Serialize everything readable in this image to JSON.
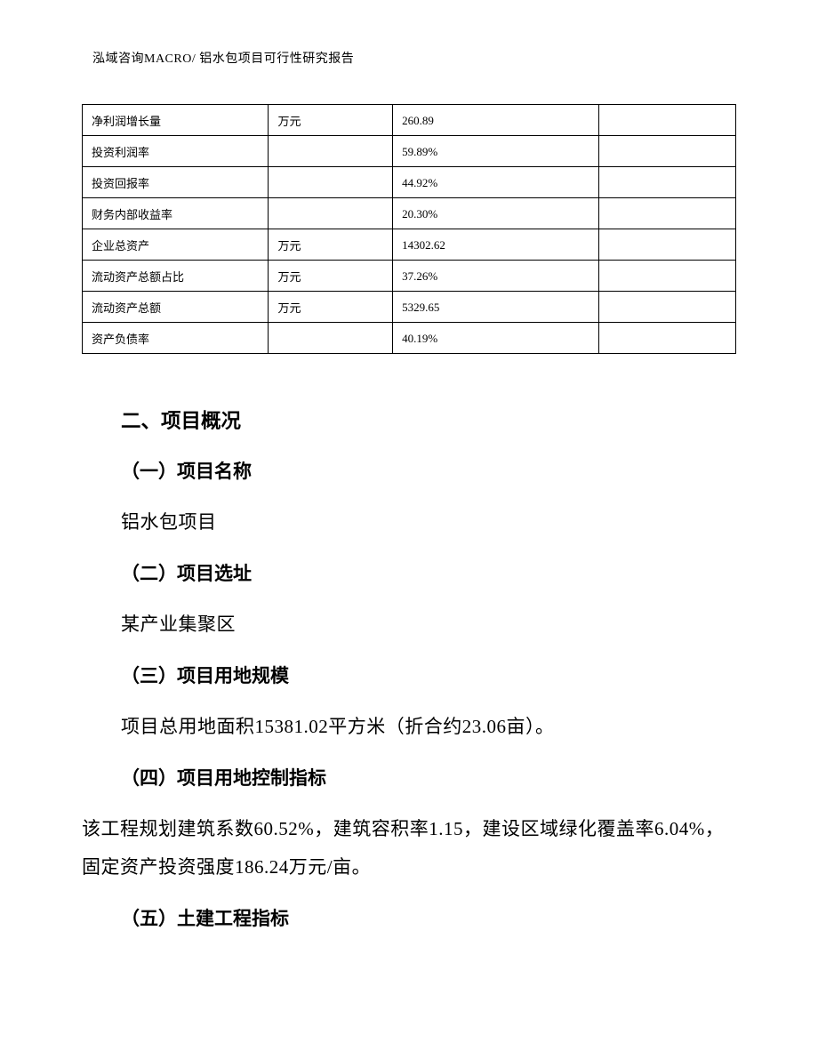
{
  "header": {
    "text": "泓域咨询MACRO/   铝水包项目可行性研究报告"
  },
  "table": {
    "columns": [
      {
        "width_pct": 28.5
      },
      {
        "width_pct": 19.0
      },
      {
        "width_pct": 31.5
      },
      {
        "width_pct": 21.0
      }
    ],
    "border_color": "#000000",
    "font_size_pt": 10,
    "rows": [
      {
        "label": "净利润增长量",
        "unit": "万元",
        "value": "260.89",
        "note": ""
      },
      {
        "label": "投资利润率",
        "unit": "",
        "value": "59.89%",
        "note": ""
      },
      {
        "label": "投资回报率",
        "unit": "",
        "value": "44.92%",
        "note": ""
      },
      {
        "label": "财务内部收益率",
        "unit": "",
        "value": "20.30%",
        "note": ""
      },
      {
        "label": "企业总资产",
        "unit": "万元",
        "value": "14302.62",
        "note": ""
      },
      {
        "label": "流动资产总额占比",
        "unit": "万元",
        "value": "37.26%",
        "note": ""
      },
      {
        "label": "流动资产总额",
        "unit": "万元",
        "value": "5329.65",
        "note": ""
      },
      {
        "label": "资产负债率",
        "unit": "",
        "value": "40.19%",
        "note": ""
      }
    ]
  },
  "section": {
    "title": "二、项目概况",
    "items": [
      {
        "heading": "（一）项目名称",
        "body": "铝水包项目"
      },
      {
        "heading": "（二）项目选址",
        "body": "某产业集聚区"
      },
      {
        "heading": "（三）项目用地规模",
        "body": "项目总用地面积15381.02平方米（折合约23.06亩）。"
      },
      {
        "heading": "（四）项目用地控制指标",
        "body": "该工程规划建筑系数60.52%，建筑容积率1.15，建设区域绿化覆盖率6.04%，固定资产投资强度186.24万元/亩。",
        "hang_out": true
      },
      {
        "heading": "（五）土建工程指标",
        "body": ""
      }
    ]
  },
  "styling": {
    "page_bg": "#ffffff",
    "text_color": "#000000",
    "heading_font": "SimHei",
    "body_font": "SimSun",
    "body_fontsize_pt": 16,
    "heading_fontsize_pt": 17,
    "section_title_fontsize_pt": 17,
    "line_height": 2.05
  }
}
